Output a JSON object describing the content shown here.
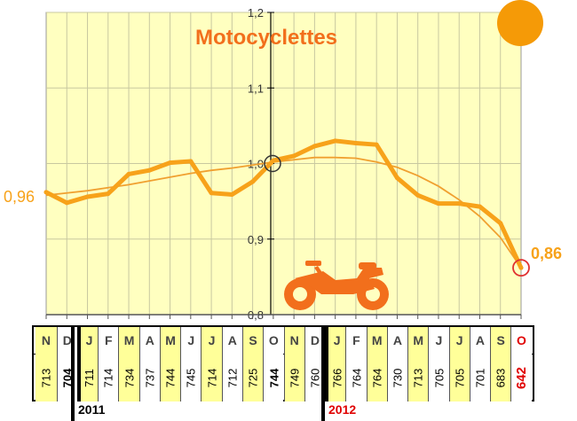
{
  "chart_data": {
    "type": "line",
    "title": "Motocyclettes",
    "ylim": [
      0.8,
      1.2
    ],
    "yticks": [
      "0,8",
      "0,9",
      "1,0",
      "1,1",
      "1,2"
    ],
    "grid": true,
    "start_label": "0,96",
    "end_label": "0,86",
    "months": [
      "N",
      "D",
      "J",
      "F",
      "M",
      "A",
      "M",
      "J",
      "J",
      "A",
      "S",
      "O",
      "N",
      "D",
      "J",
      "F",
      "M",
      "A",
      "M",
      "J",
      "J",
      "A",
      "S",
      "O"
    ],
    "counts": [
      "713",
      "704",
      "711",
      "714",
      "734",
      "737",
      "744",
      "745",
      "714",
      "712",
      "725",
      "744",
      "749",
      "760",
      "766",
      "764",
      "764",
      "730",
      "713",
      "705",
      "705",
      "701",
      "683",
      "642"
    ],
    "years": [
      "2011",
      "2012"
    ],
    "series": [
      {
        "values": [
          0.962,
          0.948,
          0.956,
          0.96,
          0.986,
          0.991,
          1.001,
          1.003,
          0.961,
          0.959,
          0.976,
          1.004,
          1.01,
          1.023,
          1.03,
          1.027,
          1.025,
          0.981,
          0.958,
          0.947,
          0.947,
          0.943,
          0.921,
          0.862
        ]
      },
      {
        "values": [
          0.958,
          0.961,
          0.964,
          0.968,
          0.972,
          0.977,
          0.982,
          0.987,
          0.991,
          0.994,
          0.998,
          1.002,
          1.005,
          1.008,
          1.008,
          1.007,
          1.002,
          0.995,
          0.984,
          0.97,
          0.952,
          0.93,
          0.902,
          0.862
        ]
      }
    ],
    "colors": {
      "line": "#f7a21a",
      "trend": "#f0a030",
      "title": "#f26f1c",
      "plot_bg": "#ffffc0",
      "grid": "#c8c8a0",
      "accent_red": "#e00000",
      "bike": "#f26f1c",
      "sun": "#f59a07"
    }
  }
}
